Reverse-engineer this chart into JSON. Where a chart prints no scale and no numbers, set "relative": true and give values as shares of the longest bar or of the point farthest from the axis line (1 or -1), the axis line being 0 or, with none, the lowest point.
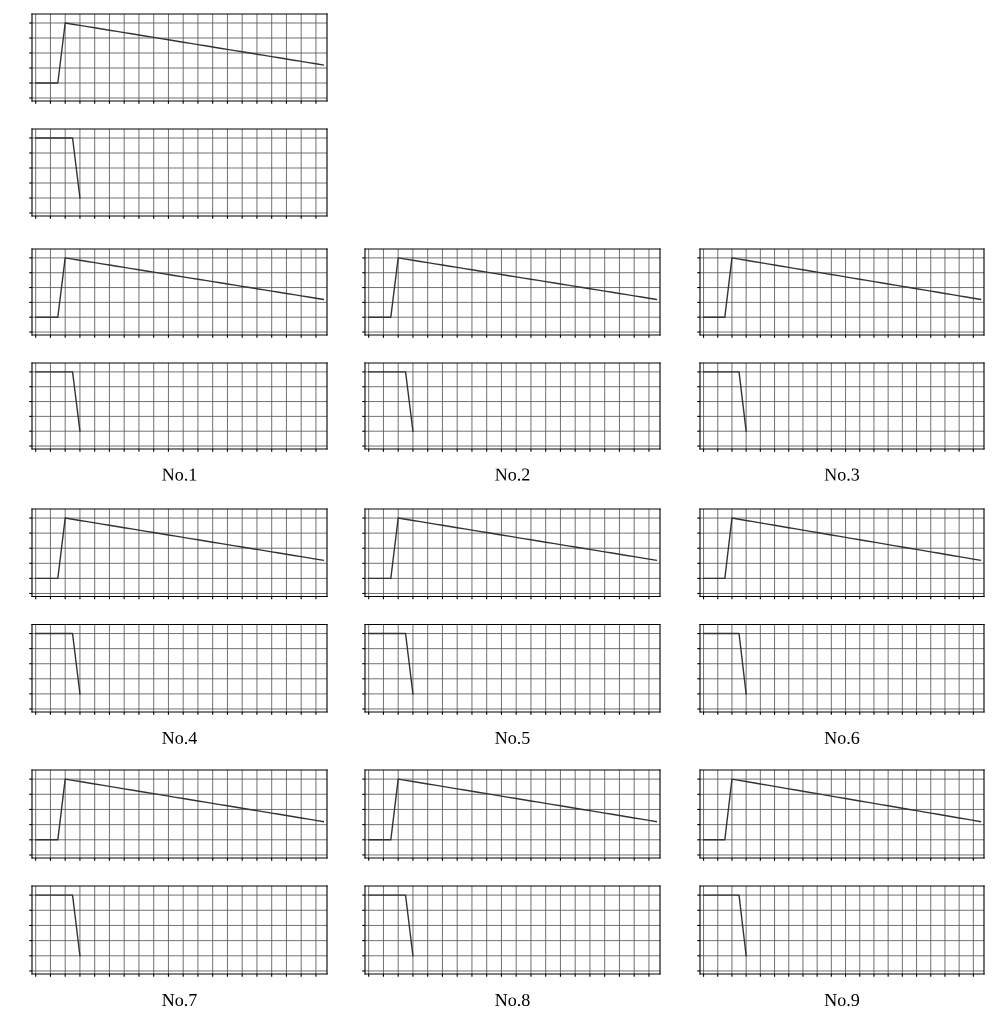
{
  "chart_data": [
    {
      "type": "line",
      "relative": true,
      "grid": true,
      "categories": [
        null,
        null,
        null,
        null,
        null,
        null,
        null,
        null,
        null,
        null,
        null,
        null,
        null,
        null,
        null,
        null,
        null,
        null,
        null,
        null,
        null,
        null,
        null,
        null,
        null,
        null,
        null,
        null,
        null,
        null,
        null,
        null,
        null,
        null,
        null,
        null,
        null,
        null,
        null,
        null
      ],
      "series": [
        {
          "color": "#333333",
          "values": [
            0,
            0,
            0,
            0,
            1,
            0.98,
            0.96,
            0.94,
            0.92,
            0.9,
            0.88,
            0.86,
            0.84,
            0.82,
            0.8,
            0.78,
            0.76,
            0.74,
            0.72,
            0.7,
            0.68,
            0.66,
            0.64,
            0.62,
            0.6,
            0.58,
            0.56,
            0.54,
            0.52,
            0.5,
            0.48,
            0.46,
            0.44,
            0.42,
            0.4,
            0.38,
            0.36,
            0.34,
            0.32,
            0.3
          ]
        }
      ]
    },
    {
      "type": "line",
      "relative": true,
      "grid": true,
      "categories": [
        null,
        null,
        null,
        null,
        null,
        null,
        null,
        null,
        null,
        null,
        null,
        null,
        null,
        null,
        null,
        null,
        null,
        null,
        null,
        null,
        null,
        null,
        null,
        null,
        null,
        null,
        null,
        null,
        null,
        null,
        null,
        null,
        null,
        null,
        null,
        null,
        null,
        null,
        null,
        null
      ],
      "series": [
        {
          "color": "#333333",
          "values": [
            1,
            1,
            1,
            1,
            1,
            1,
            0,
            null,
            null,
            null,
            null,
            null,
            null,
            null,
            null,
            null,
            null,
            null,
            null,
            null,
            null,
            null,
            null,
            null,
            null,
            null,
            null,
            null,
            null,
            null,
            null,
            null,
            null,
            null,
            null,
            null,
            null,
            null,
            null,
            null
          ]
        }
      ]
    },
    {
      "type": "line",
      "relative": true,
      "grid": true,
      "categories": [
        null,
        null,
        null,
        null,
        null,
        null,
        null,
        null,
        null,
        null,
        null,
        null,
        null,
        null,
        null,
        null,
        null,
        null,
        null,
        null,
        null,
        null,
        null,
        null,
        null,
        null,
        null,
        null,
        null,
        null,
        null,
        null,
        null,
        null,
        null,
        null,
        null,
        null,
        null,
        null
      ],
      "series": [
        {
          "color": "#333333",
          "values": [
            0,
            0,
            0,
            0,
            1,
            0.98,
            0.96,
            0.94,
            0.92,
            0.9,
            0.88,
            0.86,
            0.84,
            0.82,
            0.8,
            0.78,
            0.76,
            0.74,
            0.72,
            0.7,
            0.68,
            0.66,
            0.64,
            0.62,
            0.6,
            0.58,
            0.56,
            0.54,
            0.52,
            0.5,
            0.48,
            0.46,
            0.44,
            0.42,
            0.4,
            0.38,
            0.36,
            0.34,
            0.32,
            0.3
          ]
        }
      ]
    },
    {
      "type": "line",
      "relative": true,
      "grid": true,
      "annotations": [
        "No.1"
      ],
      "categories": [
        null,
        null,
        null,
        null,
        null,
        null,
        null,
        null,
        null,
        null,
        null,
        null,
        null,
        null,
        null,
        null,
        null,
        null,
        null,
        null,
        null,
        null,
        null,
        null,
        null,
        null,
        null,
        null,
        null,
        null,
        null,
        null,
        null,
        null,
        null,
        null,
        null,
        null,
        null,
        null
      ],
      "series": [
        {
          "color": "#333333",
          "values": [
            1,
            1,
            1,
            1,
            1,
            1,
            0,
            null,
            null,
            null,
            null,
            null,
            null,
            null,
            null,
            null,
            null,
            null,
            null,
            null,
            null,
            null,
            null,
            null,
            null,
            null,
            null,
            null,
            null,
            null,
            null,
            null,
            null,
            null,
            null,
            null,
            null,
            null,
            null,
            null
          ]
        }
      ]
    },
    {
      "type": "line",
      "relative": true,
      "grid": true,
      "categories": [
        null,
        null,
        null,
        null,
        null,
        null,
        null,
        null,
        null,
        null,
        null,
        null,
        null,
        null,
        null,
        null,
        null,
        null,
        null,
        null,
        null,
        null,
        null,
        null,
        null,
        null,
        null,
        null,
        null,
        null,
        null,
        null,
        null,
        null,
        null,
        null,
        null,
        null,
        null,
        null
      ],
      "series": [
        {
          "color": "#333333",
          "values": [
            0,
            0,
            0,
            0,
            1,
            0.98,
            0.96,
            0.94,
            0.92,
            0.9,
            0.88,
            0.86,
            0.84,
            0.82,
            0.8,
            0.78,
            0.76,
            0.74,
            0.72,
            0.7,
            0.68,
            0.66,
            0.64,
            0.62,
            0.6,
            0.58,
            0.56,
            0.54,
            0.52,
            0.5,
            0.48,
            0.46,
            0.44,
            0.42,
            0.4,
            0.38,
            0.36,
            0.34,
            0.32,
            0.3
          ]
        }
      ]
    },
    {
      "type": "line",
      "relative": true,
      "grid": true,
      "annotations": [
        "No.2"
      ],
      "categories": [
        null,
        null,
        null,
        null,
        null,
        null,
        null,
        null,
        null,
        null,
        null,
        null,
        null,
        null,
        null,
        null,
        null,
        null,
        null,
        null,
        null,
        null,
        null,
        null,
        null,
        null,
        null,
        null,
        null,
        null,
        null,
        null,
        null,
        null,
        null,
        null,
        null,
        null,
        null,
        null
      ],
      "series": [
        {
          "color": "#333333",
          "values": [
            1,
            1,
            1,
            1,
            1,
            1,
            0,
            null,
            null,
            null,
            null,
            null,
            null,
            null,
            null,
            null,
            null,
            null,
            null,
            null,
            null,
            null,
            null,
            null,
            null,
            null,
            null,
            null,
            null,
            null,
            null,
            null,
            null,
            null,
            null,
            null,
            null,
            null,
            null,
            null
          ]
        }
      ]
    },
    {
      "type": "line",
      "relative": true,
      "grid": true,
      "categories": [
        null,
        null,
        null,
        null,
        null,
        null,
        null,
        null,
        null,
        null,
        null,
        null,
        null,
        null,
        null,
        null,
        null,
        null,
        null,
        null,
        null,
        null,
        null,
        null,
        null,
        null,
        null,
        null,
        null,
        null,
        null,
        null,
        null,
        null,
        null,
        null,
        null,
        null,
        null,
        null
      ],
      "series": [
        {
          "color": "#333333",
          "values": [
            0,
            0,
            0,
            0,
            1,
            0.98,
            0.96,
            0.94,
            0.92,
            0.9,
            0.88,
            0.86,
            0.84,
            0.82,
            0.8,
            0.78,
            0.76,
            0.74,
            0.72,
            0.7,
            0.68,
            0.66,
            0.64,
            0.62,
            0.6,
            0.58,
            0.56,
            0.54,
            0.52,
            0.5,
            0.48,
            0.46,
            0.44,
            0.42,
            0.4,
            0.38,
            0.36,
            0.34,
            0.32,
            0.3
          ]
        }
      ]
    },
    {
      "type": "line",
      "relative": true,
      "grid": true,
      "annotations": [
        "No.3"
      ],
      "categories": [
        null,
        null,
        null,
        null,
        null,
        null,
        null,
        null,
        null,
        null,
        null,
        null,
        null,
        null,
        null,
        null,
        null,
        null,
        null,
        null,
        null,
        null,
        null,
        null,
        null,
        null,
        null,
        null,
        null,
        null,
        null,
        null,
        null,
        null,
        null,
        null,
        null,
        null,
        null,
        null
      ],
      "series": [
        {
          "color": "#333333",
          "values": [
            1,
            1,
            1,
            1,
            1,
            1,
            0,
            null,
            null,
            null,
            null,
            null,
            null,
            null,
            null,
            null,
            null,
            null,
            null,
            null,
            null,
            null,
            null,
            null,
            null,
            null,
            null,
            null,
            null,
            null,
            null,
            null,
            null,
            null,
            null,
            null,
            null,
            null,
            null,
            null
          ]
        }
      ]
    },
    {
      "type": "line",
      "relative": true,
      "grid": true,
      "categories": [
        null,
        null,
        null,
        null,
        null,
        null,
        null,
        null,
        null,
        null,
        null,
        null,
        null,
        null,
        null,
        null,
        null,
        null,
        null,
        null,
        null,
        null,
        null,
        null,
        null,
        null,
        null,
        null,
        null,
        null,
        null,
        null,
        null,
        null,
        null,
        null,
        null,
        null,
        null,
        null
      ],
      "series": [
        {
          "color": "#333333",
          "values": [
            0,
            0,
            0,
            0,
            1,
            0.98,
            0.96,
            0.94,
            0.92,
            0.9,
            0.88,
            0.86,
            0.84,
            0.82,
            0.8,
            0.78,
            0.76,
            0.74,
            0.72,
            0.7,
            0.68,
            0.66,
            0.64,
            0.62,
            0.6,
            0.58,
            0.56,
            0.54,
            0.52,
            0.5,
            0.48,
            0.46,
            0.44,
            0.42,
            0.4,
            0.38,
            0.36,
            0.34,
            0.32,
            0.3
          ]
        }
      ]
    },
    {
      "type": "line",
      "relative": true,
      "grid": true,
      "annotations": [
        "No.4"
      ],
      "categories": [
        null,
        null,
        null,
        null,
        null,
        null,
        null,
        null,
        null,
        null,
        null,
        null,
        null,
        null,
        null,
        null,
        null,
        null,
        null,
        null,
        null,
        null,
        null,
        null,
        null,
        null,
        null,
        null,
        null,
        null,
        null,
        null,
        null,
        null,
        null,
        null,
        null,
        null,
        null,
        null
      ],
      "series": [
        {
          "color": "#333333",
          "values": [
            1,
            1,
            1,
            1,
            1,
            1,
            0,
            null,
            null,
            null,
            null,
            null,
            null,
            null,
            null,
            null,
            null,
            null,
            null,
            null,
            null,
            null,
            null,
            null,
            null,
            null,
            null,
            null,
            null,
            null,
            null,
            null,
            null,
            null,
            null,
            null,
            null,
            null,
            null,
            null
          ]
        }
      ]
    },
    {
      "type": "line",
      "relative": true,
      "grid": true,
      "categories": [
        null,
        null,
        null,
        null,
        null,
        null,
        null,
        null,
        null,
        null,
        null,
        null,
        null,
        null,
        null,
        null,
        null,
        null,
        null,
        null,
        null,
        null,
        null,
        null,
        null,
        null,
        null,
        null,
        null,
        null,
        null,
        null,
        null,
        null,
        null,
        null,
        null,
        null,
        null,
        null
      ],
      "series": [
        {
          "color": "#333333",
          "values": [
            0,
            0,
            0,
            0,
            1,
            0.98,
            0.96,
            0.94,
            0.92,
            0.9,
            0.88,
            0.86,
            0.84,
            0.82,
            0.8,
            0.78,
            0.76,
            0.74,
            0.72,
            0.7,
            0.68,
            0.66,
            0.64,
            0.62,
            0.6,
            0.58,
            0.56,
            0.54,
            0.52,
            0.5,
            0.48,
            0.46,
            0.44,
            0.42,
            0.4,
            0.38,
            0.36,
            0.34,
            0.32,
            0.3
          ]
        }
      ]
    },
    {
      "type": "line",
      "relative": true,
      "grid": true,
      "annotations": [
        "No.5"
      ],
      "categories": [
        null,
        null,
        null,
        null,
        null,
        null,
        null,
        null,
        null,
        null,
        null,
        null,
        null,
        null,
        null,
        null,
        null,
        null,
        null,
        null,
        null,
        null,
        null,
        null,
        null,
        null,
        null,
        null,
        null,
        null,
        null,
        null,
        null,
        null,
        null,
        null,
        null,
        null,
        null,
        null
      ],
      "series": [
        {
          "color": "#333333",
          "values": [
            1,
            1,
            1,
            1,
            1,
            1,
            0,
            null,
            null,
            null,
            null,
            null,
            null,
            null,
            null,
            null,
            null,
            null,
            null,
            null,
            null,
            null,
            null,
            null,
            null,
            null,
            null,
            null,
            null,
            null,
            null,
            null,
            null,
            null,
            null,
            null,
            null,
            null,
            null,
            null
          ]
        }
      ]
    },
    {
      "type": "line",
      "relative": true,
      "grid": true,
      "categories": [
        null,
        null,
        null,
        null,
        null,
        null,
        null,
        null,
        null,
        null,
        null,
        null,
        null,
        null,
        null,
        null,
        null,
        null,
        null,
        null,
        null,
        null,
        null,
        null,
        null,
        null,
        null,
        null,
        null,
        null,
        null,
        null,
        null,
        null,
        null,
        null,
        null,
        null,
        null,
        null
      ],
      "series": [
        {
          "color": "#333333",
          "values": [
            0,
            0,
            0,
            0,
            1,
            0.98,
            0.96,
            0.94,
            0.92,
            0.9,
            0.88,
            0.86,
            0.84,
            0.82,
            0.8,
            0.78,
            0.76,
            0.74,
            0.72,
            0.7,
            0.68,
            0.66,
            0.64,
            0.62,
            0.6,
            0.58,
            0.56,
            0.54,
            0.52,
            0.5,
            0.48,
            0.46,
            0.44,
            0.42,
            0.4,
            0.38,
            0.36,
            0.34,
            0.32,
            0.3
          ]
        }
      ]
    },
    {
      "type": "line",
      "relative": true,
      "grid": true,
      "annotations": [
        "No.6"
      ],
      "categories": [
        null,
        null,
        null,
        null,
        null,
        null,
        null,
        null,
        null,
        null,
        null,
        null,
        null,
        null,
        null,
        null,
        null,
        null,
        null,
        null,
        null,
        null,
        null,
        null,
        null,
        null,
        null,
        null,
        null,
        null,
        null,
        null,
        null,
        null,
        null,
        null,
        null,
        null,
        null,
        null
      ],
      "series": [
        {
          "color": "#333333",
          "values": [
            1,
            1,
            1,
            1,
            1,
            1,
            0,
            null,
            null,
            null,
            null,
            null,
            null,
            null,
            null,
            null,
            null,
            null,
            null,
            null,
            null,
            null,
            null,
            null,
            null,
            null,
            null,
            null,
            null,
            null,
            null,
            null,
            null,
            null,
            null,
            null,
            null,
            null,
            null,
            null
          ]
        }
      ]
    },
    {
      "type": "line",
      "relative": true,
      "grid": true,
      "categories": [
        null,
        null,
        null,
        null,
        null,
        null,
        null,
        null,
        null,
        null,
        null,
        null,
        null,
        null,
        null,
        null,
        null,
        null,
        null,
        null,
        null,
        null,
        null,
        null,
        null,
        null,
        null,
        null,
        null,
        null,
        null,
        null,
        null,
        null,
        null,
        null,
        null,
        null,
        null,
        null
      ],
      "series": [
        {
          "color": "#333333",
          "values": [
            0,
            0,
            0,
            0,
            1,
            0.98,
            0.96,
            0.94,
            0.92,
            0.9,
            0.88,
            0.86,
            0.84,
            0.82,
            0.8,
            0.78,
            0.76,
            0.74,
            0.72,
            0.7,
            0.68,
            0.66,
            0.64,
            0.62,
            0.6,
            0.58,
            0.56,
            0.54,
            0.52,
            0.5,
            0.48,
            0.46,
            0.44,
            0.42,
            0.4,
            0.38,
            0.36,
            0.34,
            0.32,
            0.3
          ]
        }
      ]
    },
    {
      "type": "line",
      "relative": true,
      "grid": true,
      "annotations": [
        "No.7"
      ],
      "categories": [
        null,
        null,
        null,
        null,
        null,
        null,
        null,
        null,
        null,
        null,
        null,
        null,
        null,
        null,
        null,
        null,
        null,
        null,
        null,
        null,
        null,
        null,
        null,
        null,
        null,
        null,
        null,
        null,
        null,
        null,
        null,
        null,
        null,
        null,
        null,
        null,
        null,
        null,
        null,
        null
      ],
      "series": [
        {
          "color": "#333333",
          "values": [
            1,
            1,
            1,
            1,
            1,
            1,
            0,
            null,
            null,
            null,
            null,
            null,
            null,
            null,
            null,
            null,
            null,
            null,
            null,
            null,
            null,
            null,
            null,
            null,
            null,
            null,
            null,
            null,
            null,
            null,
            null,
            null,
            null,
            null,
            null,
            null,
            null,
            null,
            null,
            null
          ]
        }
      ]
    },
    {
      "type": "line",
      "relative": true,
      "grid": true,
      "categories": [
        null,
        null,
        null,
        null,
        null,
        null,
        null,
        null,
        null,
        null,
        null,
        null,
        null,
        null,
        null,
        null,
        null,
        null,
        null,
        null,
        null,
        null,
        null,
        null,
        null,
        null,
        null,
        null,
        null,
        null,
        null,
        null,
        null,
        null,
        null,
        null,
        null,
        null,
        null,
        null
      ],
      "series": [
        {
          "color": "#333333",
          "values": [
            0,
            0,
            0,
            0,
            1,
            0.98,
            0.96,
            0.94,
            0.92,
            0.9,
            0.88,
            0.86,
            0.84,
            0.82,
            0.8,
            0.78,
            0.76,
            0.74,
            0.72,
            0.7,
            0.68,
            0.66,
            0.64,
            0.62,
            0.6,
            0.58,
            0.56,
            0.54,
            0.52,
            0.5,
            0.48,
            0.46,
            0.44,
            0.42,
            0.4,
            0.38,
            0.36,
            0.34,
            0.32,
            0.3
          ]
        }
      ]
    },
    {
      "type": "line",
      "relative": true,
      "grid": true,
      "annotations": [
        "No.8"
      ],
      "categories": [
        null,
        null,
        null,
        null,
        null,
        null,
        null,
        null,
        null,
        null,
        null,
        null,
        null,
        null,
        null,
        null,
        null,
        null,
        null,
        null,
        null,
        null,
        null,
        null,
        null,
        null,
        null,
        null,
        null,
        null,
        null,
        null,
        null,
        null,
        null,
        null,
        null,
        null,
        null,
        null
      ],
      "series": [
        {
          "color": "#333333",
          "values": [
            1,
            1,
            1,
            1,
            1,
            1,
            0,
            null,
            null,
            null,
            null,
            null,
            null,
            null,
            null,
            null,
            null,
            null,
            null,
            null,
            null,
            null,
            null,
            null,
            null,
            null,
            null,
            null,
            null,
            null,
            null,
            null,
            null,
            null,
            null,
            null,
            null,
            null,
            null,
            null
          ]
        }
      ]
    },
    {
      "type": "line",
      "relative": true,
      "grid": true,
      "categories": [
        null,
        null,
        null,
        null,
        null,
        null,
        null,
        null,
        null,
        null,
        null,
        null,
        null,
        null,
        null,
        null,
        null,
        null,
        null,
        null,
        null,
        null,
        null,
        null,
        null,
        null,
        null,
        null,
        null,
        null,
        null,
        null,
        null,
        null,
        null,
        null,
        null,
        null,
        null,
        null
      ],
      "series": [
        {
          "color": "#333333",
          "values": [
            0,
            0,
            0,
            0,
            1,
            0.98,
            0.96,
            0.94,
            0.92,
            0.9,
            0.88,
            0.86,
            0.84,
            0.82,
            0.8,
            0.78,
            0.76,
            0.74,
            0.72,
            0.7,
            0.68,
            0.66,
            0.64,
            0.62,
            0.6,
            0.58,
            0.56,
            0.54,
            0.52,
            0.5,
            0.48,
            0.46,
            0.44,
            0.42,
            0.4,
            0.38,
            0.36,
            0.34,
            0.32,
            0.3
          ]
        }
      ]
    },
    {
      "type": "line",
      "relative": true,
      "grid": true,
      "annotations": [
        "No.9"
      ],
      "categories": [
        null,
        null,
        null,
        null,
        null,
        null,
        null,
        null,
        null,
        null,
        null,
        null,
        null,
        null,
        null,
        null,
        null,
        null,
        null,
        null,
        null,
        null,
        null,
        null,
        null,
        null,
        null,
        null,
        null,
        null,
        null,
        null,
        null,
        null,
        null,
        null,
        null,
        null,
        null,
        null
      ],
      "series": [
        {
          "color": "#333333",
          "values": [
            1,
            1,
            1,
            1,
            1,
            1,
            0,
            null,
            null,
            null,
            null,
            null,
            null,
            null,
            null,
            null,
            null,
            null,
            null,
            null,
            null,
            null,
            null,
            null,
            null,
            null,
            null,
            null,
            null,
            null,
            null,
            null,
            null,
            null,
            null,
            null,
            null,
            null,
            null,
            null
          ]
        }
      ]
    }
  ]
}
